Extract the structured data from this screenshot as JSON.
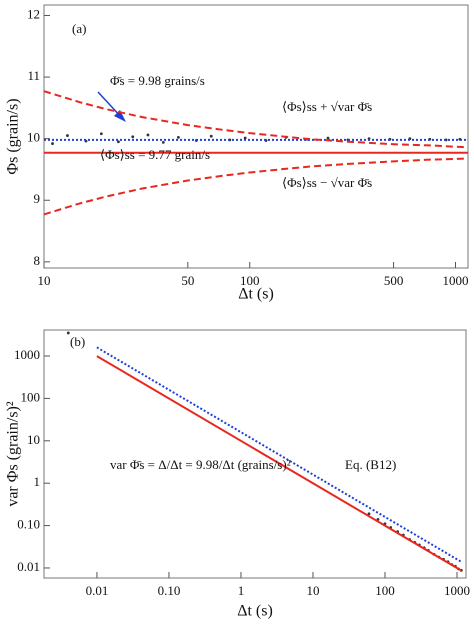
{
  "chart_data": [
    {
      "type": "line",
      "label": "(a)",
      "xlabel": "Δt (s)",
      "ylabel": "Φs (grain/s)",
      "log_x": true,
      "log_y": false,
      "xlim": [
        10,
        1150
      ],
      "ylim": [
        7.9,
        12.17
      ],
      "xticks": [
        10,
        50,
        100,
        500,
        1000
      ],
      "yticks": [
        8,
        9,
        10,
        11,
        12
      ],
      "series": [
        {
          "kind": "scatter",
          "color": "#333333",
          "x": [
            11,
            13,
            16,
            19,
            23,
            27,
            32,
            38,
            45,
            55,
            65,
            80,
            95,
            120,
            150,
            190,
            240,
            300,
            380,
            480,
            600,
            750,
            900,
            1050
          ],
          "values": [
            9.92,
            10.05,
            9.96,
            10.08,
            9.95,
            10.03,
            10.06,
            9.94,
            10.02,
            9.97,
            10.04,
            9.98,
            10.01,
            9.97,
            10.02,
            9.99,
            10.01,
            9.98,
            10.0,
            9.99,
            10.0,
            9.99,
            9.98,
            9.99
          ]
        },
        {
          "kind": "line",
          "style": "dotted",
          "color": "#1f3fd6",
          "x": [
            10,
            1150
          ],
          "values": [
            9.98,
            9.98
          ]
        },
        {
          "kind": "line",
          "style": "solid",
          "color": "#e8281e",
          "x": [
            10,
            1150
          ],
          "values": [
            9.77,
            9.77
          ]
        },
        {
          "kind": "line",
          "style": "dashed",
          "color": "#e8281e",
          "x": [
            10,
            15,
            20,
            30,
            50,
            75,
            100,
            150,
            200,
            300,
            500,
            750,
            1000,
            1150
          ],
          "values": [
            10.77,
            10.59,
            10.48,
            10.35,
            10.22,
            10.14,
            10.09,
            10.03,
            9.99,
            9.95,
            9.91,
            9.89,
            9.87,
            9.86
          ]
        },
        {
          "kind": "line",
          "style": "dashed",
          "color": "#e8281e",
          "x": [
            10,
            15,
            20,
            30,
            50,
            75,
            100,
            150,
            200,
            300,
            500,
            750,
            1000,
            1150
          ],
          "values": [
            8.77,
            8.95,
            9.06,
            9.19,
            9.32,
            9.4,
            9.45,
            9.51,
            9.55,
            9.59,
            9.63,
            9.66,
            9.67,
            9.68
          ]
        }
      ],
      "annotations": [
        "Φ̄s = 9.98 grains/s",
        "⟨Φs⟩ss + √var Φ̄s",
        "⟨Φs⟩ss = 9.77 grain/s",
        "⟨Φs⟩ss − √var Φ̄s"
      ]
    },
    {
      "type": "line",
      "label": "(b)",
      "xlabel": "Δt (s)",
      "ylabel": "var Φs (grain/s)²",
      "log_x": true,
      "log_y": true,
      "xlim": [
        0.00184,
        1334
      ],
      "ylim": [
        0.0058,
        4110
      ],
      "xticks": [
        0.01,
        {
          "value": 0.1,
          "label": "0.10"
        },
        1,
        10,
        100,
        1000
      ],
      "yticks": [
        0.01,
        {
          "value": 0.1,
          "label": "0.10"
        },
        1,
        10,
        100,
        1000
      ],
      "series": [
        {
          "kind": "scatter",
          "color": "#333333",
          "x": [
            0.004,
            60,
            80,
            100,
            120,
            150,
            180,
            220,
            260,
            300,
            350,
            400,
            480,
            560,
            650,
            750,
            850,
            950,
            1050,
            1150
          ],
          "values": [
            3500,
            0.19,
            0.14,
            0.11,
            0.09,
            0.072,
            0.06,
            0.047,
            0.04,
            0.035,
            0.03,
            0.026,
            0.021,
            0.018,
            0.016,
            0.014,
            0.012,
            0.011,
            0.0095,
            0.0088
          ]
        },
        {
          "kind": "line",
          "style": "dotted",
          "color": "#1f3fd6",
          "x": [
            0.01,
            1150
          ],
          "values": [
            1600,
            0.0139
          ]
        },
        {
          "kind": "line",
          "style": "solid",
          "color": "#e8281e",
          "x": [
            0.01,
            1150
          ],
          "values": [
            998,
            0.00868
          ]
        }
      ],
      "annotations": [
        "var Φ̄s = Δ/Δt = 9.98/Δt (grains/s)²",
        "Eq. (B12)"
      ]
    }
  ]
}
